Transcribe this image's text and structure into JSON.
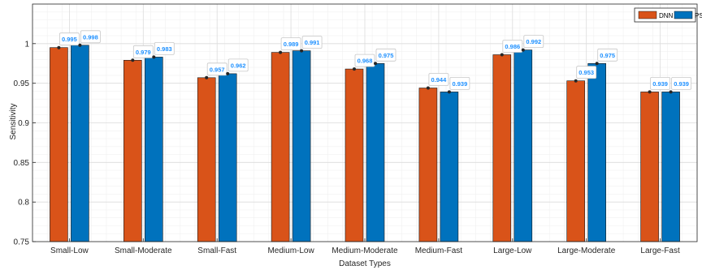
{
  "chart_data": {
    "type": "bar",
    "title": "",
    "xlabel": "Dataset Types",
    "ylabel": "Sensitivity",
    "ylim": [
      0.75,
      1.05
    ],
    "yticks": [
      0.75,
      0.8,
      0.85,
      0.9,
      0.95,
      1
    ],
    "ytick_labels": [
      "0.75",
      "0.8",
      "0.85",
      "0.9",
      "0.95",
      "1"
    ],
    "categories": [
      "Small-Low",
      "Small-Moderate",
      "Small-Fast",
      "Medium-Low",
      "Medium-Moderate",
      "Medium-Fast",
      "Large-Low",
      "Large-Moderate",
      "Large-Fast"
    ],
    "series": [
      {
        "name": "DNN",
        "color": "#d95319",
        "values": [
          0.995,
          0.979,
          0.957,
          0.989,
          0.968,
          0.944,
          0.986,
          0.953,
          0.939
        ],
        "labels": [
          "0.995",
          "0.979",
          "0.957",
          "0.989",
          "0.968",
          "0.944",
          "0.986",
          "0.953",
          "0.939"
        ]
      },
      {
        "name": "PS",
        "color": "#0072bd",
        "values": [
          0.998,
          0.983,
          0.962,
          0.991,
          0.975,
          0.939,
          0.992,
          0.975,
          0.939
        ],
        "labels": [
          "0.998",
          "0.983",
          "0.962",
          "0.991",
          "0.975",
          "0.939",
          "0.992",
          "0.975",
          "0.939"
        ]
      }
    ],
    "grid": true,
    "minor_grid": true,
    "legend_position": "top-right"
  }
}
